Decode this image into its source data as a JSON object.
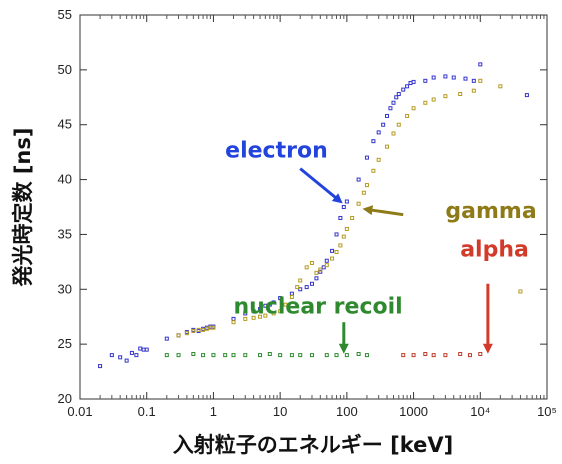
{
  "chart_data": {
    "type": "scatter",
    "xlabel": "入射粒子のエネルギー [keV]",
    "ylabel": "発光時定数 [ns]",
    "xscale": "log",
    "xlim": [
      0.01,
      100000
    ],
    "ylim": [
      20,
      55
    ],
    "xticks": [
      "0.01",
      "0.1",
      "1",
      "10",
      "100",
      "1000",
      "10⁴",
      "10⁵"
    ],
    "yticks": [
      20,
      25,
      30,
      35,
      40,
      45,
      50,
      55
    ],
    "grid": false,
    "colors": {
      "electron": "#3333cc",
      "gamma": "#b59a1e",
      "nuclear_recoil": "#2f8a2f",
      "alpha": "#c0392b"
    },
    "series": [
      {
        "name": "electron",
        "x": [
          0.02,
          0.03,
          0.04,
          0.05,
          0.06,
          0.07,
          0.08,
          0.09,
          0.1,
          0.2,
          0.3,
          0.4,
          0.5,
          0.6,
          0.7,
          0.8,
          0.9,
          1,
          2,
          3,
          4,
          5,
          6,
          7,
          8,
          10,
          15,
          20,
          25,
          30,
          35,
          40,
          45,
          50,
          60,
          70,
          80,
          90,
          100,
          150,
          200,
          250,
          300,
          350,
          400,
          450,
          500,
          550,
          600,
          700,
          800,
          900,
          1000,
          1500,
          2000,
          3000,
          4000,
          6000,
          8000,
          10000,
          50000
        ],
        "y": [
          23.0,
          24.0,
          23.8,
          23.5,
          24.2,
          24.0,
          24.6,
          24.5,
          24.5,
          25.5,
          25.8,
          26.1,
          26.3,
          26.2,
          26.4,
          26.5,
          26.6,
          26.6,
          27.3,
          27.8,
          28.0,
          28.2,
          28.5,
          28.6,
          28.8,
          29.2,
          29.6,
          30.0,
          30.2,
          30.5,
          31.0,
          31.6,
          32.0,
          32.6,
          33.5,
          35.0,
          36.5,
          37.5,
          38.0,
          40.0,
          42.0,
          43.5,
          44.3,
          45.0,
          45.8,
          46.5,
          47.0,
          47.5,
          47.8,
          48.2,
          48.5,
          48.8,
          48.9,
          49.0,
          49.3,
          49.4,
          49.3,
          49.2,
          49.0,
          50.5,
          47.7
        ]
      },
      {
        "name": "gamma",
        "x": [
          0.3,
          0.4,
          0.5,
          0.6,
          0.7,
          0.8,
          0.9,
          1,
          2,
          3,
          4,
          5,
          6,
          8,
          10,
          12,
          15,
          18,
          20,
          25,
          30,
          35,
          40,
          50,
          60,
          70,
          80,
          90,
          100,
          120,
          150,
          180,
          200,
          250,
          300,
          400,
          500,
          600,
          800,
          1000,
          1500,
          2000,
          3000,
          5000,
          8000,
          10000,
          20000,
          40000
        ],
        "y": [
          25.8,
          26.0,
          26.2,
          26.3,
          26.3,
          26.4,
          26.5,
          26.5,
          27.0,
          27.3,
          27.4,
          27.5,
          27.6,
          27.8,
          28.0,
          28.6,
          29.3,
          30.2,
          30.8,
          32.0,
          32.4,
          31.5,
          31.8,
          32.2,
          32.8,
          33.4,
          34.0,
          34.8,
          35.5,
          36.5,
          37.8,
          38.8,
          39.5,
          40.8,
          41.8,
          43.0,
          44.2,
          45.0,
          45.8,
          46.5,
          47.0,
          47.3,
          47.6,
          47.8,
          48.1,
          49.0,
          48.5,
          29.8
        ]
      },
      {
        "name": "nuclear recoil",
        "x": [
          0.2,
          0.3,
          0.5,
          0.7,
          1,
          1.5,
          2,
          3,
          5,
          7,
          10,
          15,
          20,
          30,
          50,
          70,
          100,
          150,
          200
        ],
        "y": [
          24.0,
          24.0,
          24.1,
          24.0,
          24.0,
          24.0,
          24.0,
          24.0,
          24.0,
          24.1,
          24.0,
          24.0,
          24.0,
          24.0,
          24.0,
          24.0,
          24.0,
          24.1,
          24.0
        ]
      },
      {
        "name": "alpha",
        "x": [
          700,
          1000,
          1500,
          2000,
          3000,
          5000,
          7000,
          10000
        ],
        "y": [
          24.0,
          24.0,
          24.1,
          24.0,
          24.0,
          24.1,
          24.0,
          24.1
        ]
      }
    ],
    "annotations": [
      {
        "key": "electron",
        "text": "electron",
        "color": "#2244dd",
        "text_x": 1.5,
        "text_y": 42,
        "arrow_from": [
          20,
          41
        ],
        "arrow_to": [
          80,
          38
        ]
      },
      {
        "key": "gamma",
        "text": "gamma",
        "color": "#8f7a18",
        "text_x": 3000,
        "text_y": 36.5,
        "arrow_from": [
          700,
          36.8
        ],
        "arrow_to": [
          190,
          37.3
        ]
      },
      {
        "key": "nuclear_recoil",
        "text": "nuclear recoil",
        "color": "#2f8a2f",
        "text_x": 2,
        "text_y": 27.8,
        "arrow_from": [
          90,
          27
        ],
        "arrow_to": [
          90,
          24.4
        ]
      },
      {
        "key": "alpha",
        "text": "alpha",
        "color": "#d23a2a",
        "text_x": 5000,
        "text_y": 33,
        "arrow_from": [
          13000,
          30.5
        ],
        "arrow_to": [
          13000,
          24.4
        ]
      }
    ]
  }
}
